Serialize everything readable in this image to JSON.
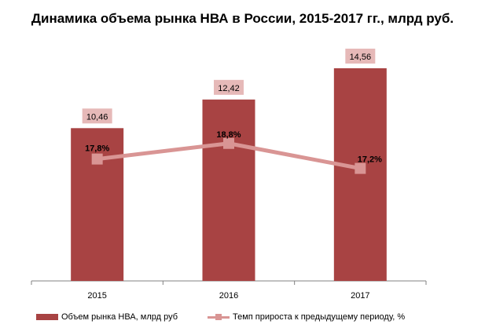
{
  "title": "Динамика объема рынка НВА в России, 2015-2017 гг., млрд руб.",
  "chart_data": {
    "type": "bar",
    "categories": [
      "2015",
      "2016",
      "2017"
    ],
    "ylim": [
      0,
      16
    ],
    "grid": false,
    "legend_position": "bottom",
    "series": [
      {
        "name": "Объем рынка НВА,  млрд руб",
        "kind": "bar",
        "values": [
          10.46,
          12.42,
          14.56
        ],
        "labels": [
          "10,46",
          "12,42",
          "14,56"
        ],
        "color": "#A84343"
      },
      {
        "name": "Темп прироста к предыдущему  периоду, %",
        "kind": "line",
        "values": [
          17.8,
          18.8,
          17.2
        ],
        "labels": [
          "17,8%",
          "18,8%",
          "17,2%"
        ],
        "ylim": [
          0,
          30
        ],
        "color": "#D99594"
      }
    ]
  },
  "colors": {
    "bar": "#A84343",
    "line": "#D99594",
    "bar_label_bg": "#E6B9B8",
    "axis": "#808080"
  }
}
